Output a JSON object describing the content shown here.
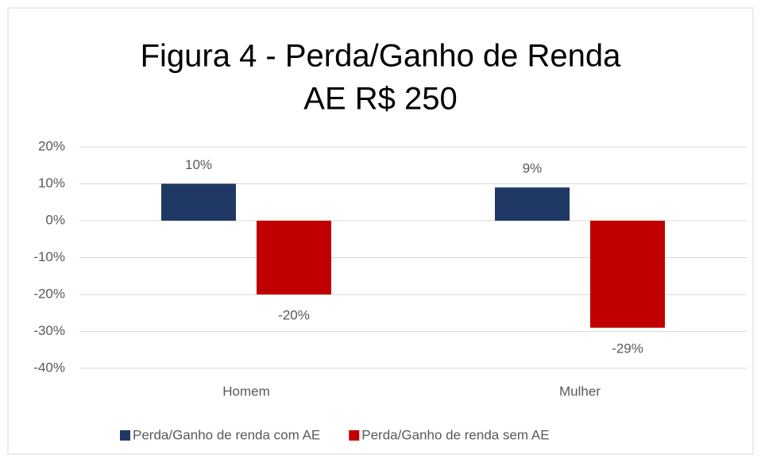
{
  "chart_data": {
    "type": "bar",
    "title": [
      "Figura 4 - Perda/Ganho de Renda",
      "AE R$ 250"
    ],
    "categories": [
      "Homem",
      "Mulher"
    ],
    "series": [
      {
        "name": "Perda/Ganho de renda com AE",
        "color": "#203864",
        "values": [
          10,
          9
        ],
        "value_labels": [
          "10%",
          "9%"
        ]
      },
      {
        "name": "Perda/Ganho de renda sem AE",
        "color": "#c00000",
        "values": [
          -20,
          -29
        ],
        "value_labels": [
          "-20%",
          "-29%"
        ]
      }
    ],
    "ylim": [
      -40,
      20
    ],
    "yticks": [
      {
        "value": -40,
        "label": "-40%"
      },
      {
        "value": -30,
        "label": "-30%"
      },
      {
        "value": -20,
        "label": "-20%"
      },
      {
        "value": -10,
        "label": "-10%"
      },
      {
        "value": 0,
        "label": "0%"
      },
      {
        "value": 10,
        "label": "10%"
      },
      {
        "value": 20,
        "label": "20%"
      }
    ],
    "grid": true,
    "legend": "bottom"
  }
}
